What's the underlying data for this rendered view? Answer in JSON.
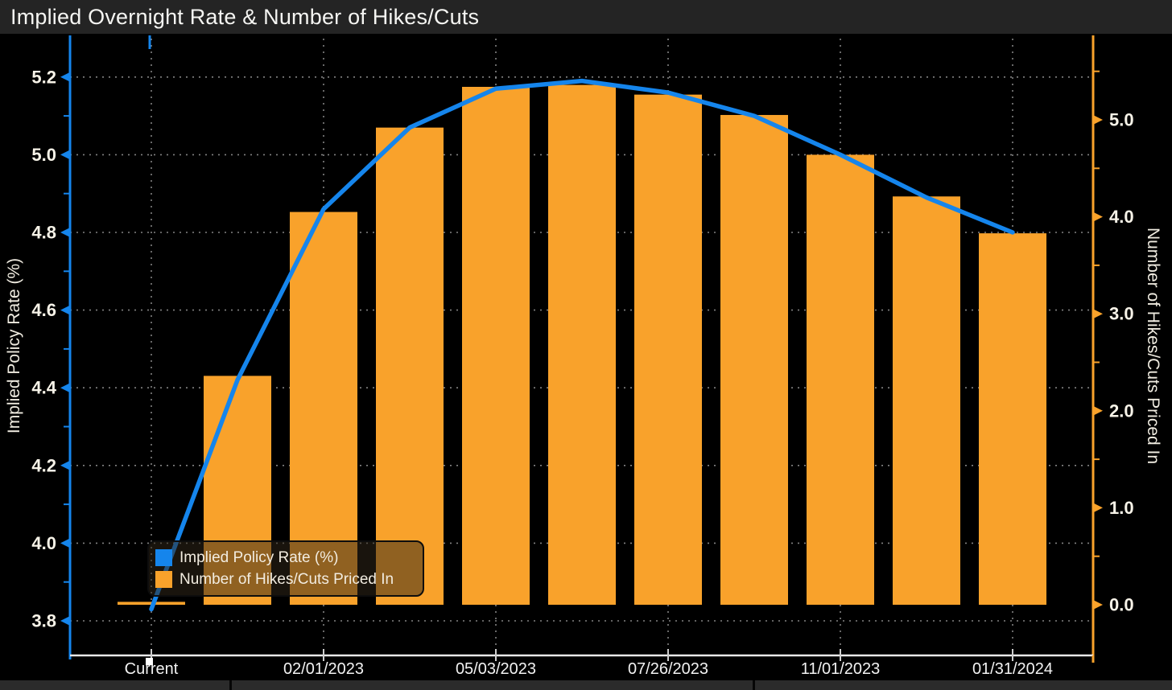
{
  "title_bar": {
    "title": "Implied Overnight Rate & Number of Hikes/Cuts"
  },
  "colors": {
    "background": "#000000",
    "title_bg": "#242424",
    "line_blue": "#1585EC",
    "bar_orange": "#F9A22B",
    "grid_gray": "#9a9a9a",
    "bottom_axis_white": "#E9E9E9",
    "tick_text": "#F7F3E8",
    "x_label_text": "#F2F2F2",
    "axis_title_text": "#EFEBE0"
  },
  "chart_data": {
    "type": "bar",
    "title": "Implied Overnight Rate & Number of Hikes/Cuts",
    "categories": [
      "Current",
      "",
      "02/01/2023",
      "",
      "05/03/2023",
      "",
      "07/26/2023",
      "",
      "11/01/2023",
      "",
      "01/31/2024"
    ],
    "x_tick_labels": [
      "Current",
      "02/01/2023",
      "05/03/2023",
      "07/26/2023",
      "11/01/2023",
      "01/31/2024"
    ],
    "series": [
      {
        "name": "Implied Policy Rate (%)",
        "type": "line",
        "axis": "left",
        "color": "#1585EC",
        "values": [
          3.83,
          4.42,
          4.86,
          5.07,
          5.17,
          5.19,
          5.16,
          5.1,
          5.0,
          4.89,
          4.8
        ]
      },
      {
        "name": "Number of Hikes/Cuts Priced In",
        "type": "bar",
        "axis": "right",
        "color": "#F9A22B",
        "values": [
          0.03,
          2.36,
          4.05,
          4.92,
          5.34,
          5.36,
          5.26,
          5.05,
          4.64,
          4.21,
          3.83
        ]
      }
    ],
    "left_axis": {
      "label": "Implied Policy Rate (%)",
      "ticks": [
        3.8,
        4.0,
        4.2,
        4.4,
        4.6,
        4.8,
        5.0,
        5.2
      ],
      "range": [
        3.711,
        5.301
      ],
      "minor_step": 0.1
    },
    "right_axis": {
      "label": "Number of Hikes/Cuts Priced In",
      "ticks": [
        0.0,
        1.0,
        2.0,
        3.0,
        4.0,
        5.0
      ],
      "range": [
        -0.522,
        5.846
      ],
      "minor_step": 0.5
    },
    "grid": "dashed, at labeled x positions and left-axis ticks",
    "legend_position": "bottom-left"
  },
  "legend": {
    "items": [
      {
        "label": "Implied Policy Rate (%)",
        "color": "#1585EC"
      },
      {
        "label": "Number of Hikes/Cuts Priced In",
        "color": "#F9A22B"
      }
    ]
  }
}
